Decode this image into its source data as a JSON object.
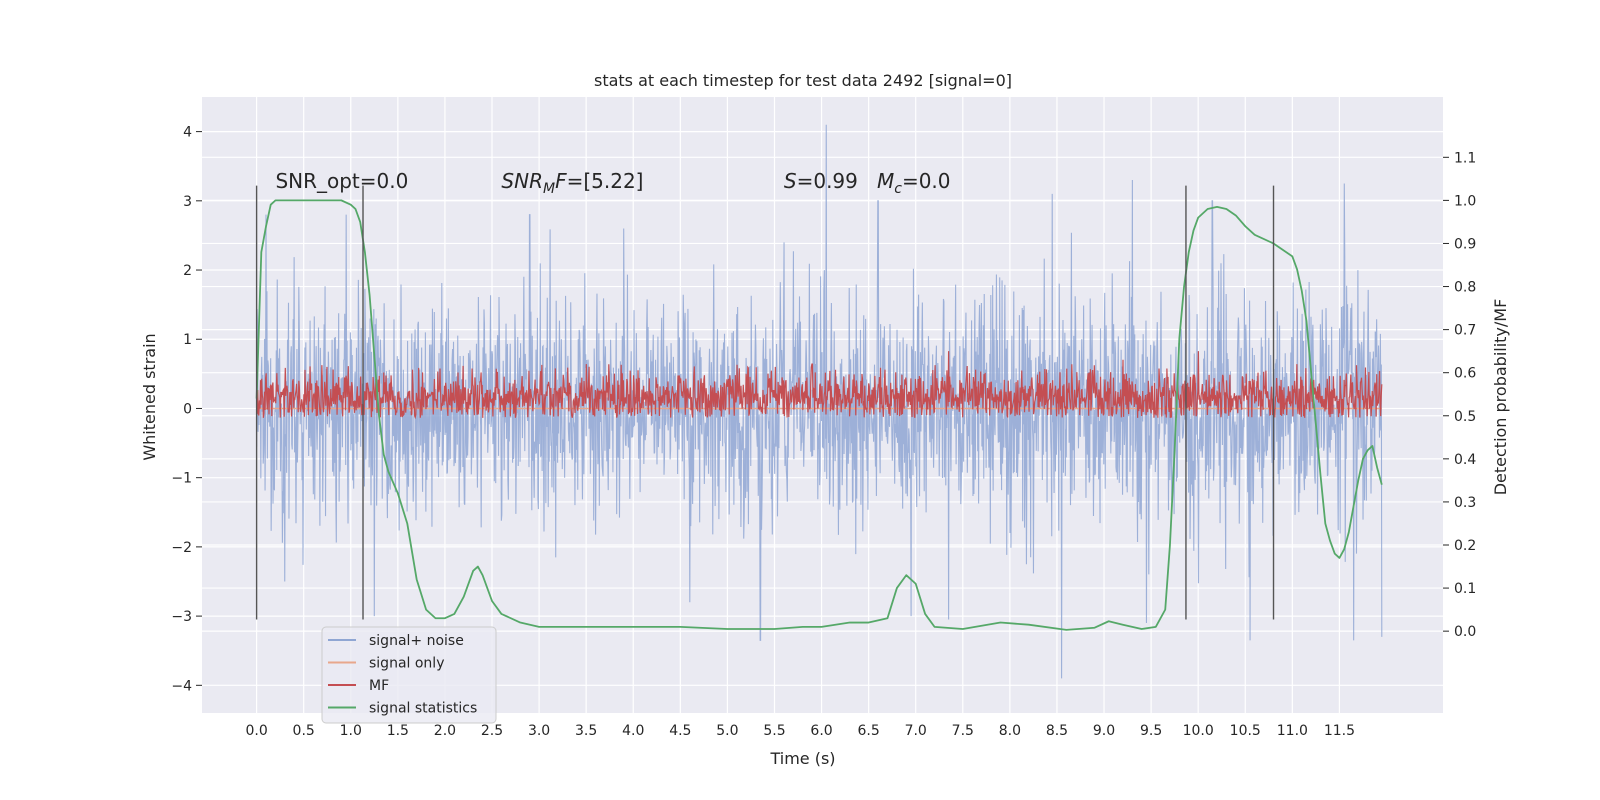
{
  "chart_data": {
    "type": "line",
    "title": "stats at each timestep for test data 2492 [signal=0]",
    "xlabel": "Time (s)",
    "ylabel": "Whitened strain",
    "y2label": "Detection probability/MF",
    "xlim": [
      -0.58,
      12.6
    ],
    "ylim": [
      -4.4,
      4.5
    ],
    "y2lim": [
      -0.19,
      1.24
    ],
    "xticks": [
      0.0,
      0.5,
      1.0,
      1.5,
      2.0,
      2.5,
      3.0,
      3.5,
      4.0,
      4.5,
      5.0,
      5.5,
      6.0,
      6.5,
      7.0,
      7.5,
      8.0,
      8.5,
      9.0,
      9.5,
      10.0,
      10.5,
      11.0,
      11.5
    ],
    "xtick_labels": [
      "0.0",
      "0.5",
      "1.0",
      "1.5",
      "2.0",
      "2.5",
      "3.0",
      "3.5",
      "4.0",
      "4.5",
      "5.0",
      "5.5",
      "6.0",
      "6.5",
      "7.0",
      "7.5",
      "8.0",
      "8.5",
      "9.0",
      "9.5",
      "10.0",
      "10.5",
      "11.0",
      "11.5"
    ],
    "yticks": [
      -4,
      -3,
      -2,
      -1,
      0,
      1,
      2,
      3,
      4
    ],
    "ytick_labels": [
      "−4",
      "−3",
      "−2",
      "−1",
      "0",
      "1",
      "2",
      "3",
      "4"
    ],
    "y2ticks": [
      0.0,
      0.1,
      0.2,
      0.3,
      0.4,
      0.5,
      0.6,
      0.7,
      0.8,
      0.9,
      1.0,
      1.1
    ],
    "y2tick_labels": [
      "0.0",
      "0.1",
      "0.2",
      "0.3",
      "0.4",
      "0.5",
      "0.6",
      "0.7",
      "0.8",
      "0.9",
      "1.0",
      "1.1"
    ],
    "grid": true,
    "legend_position": "lower-left",
    "annotations": [
      {
        "x": 0.2,
        "y": 3.3,
        "text": "SNR_opt=0.0",
        "italic_prefix": ""
      },
      {
        "x": 2.6,
        "y": 3.3,
        "text": "SNR",
        "sub": "M",
        "text2": "F=[5.22]",
        "italic_prefix": "SNR"
      },
      {
        "x": 5.6,
        "y": 3.3,
        "text": "S=0.99   M",
        "sub": "c",
        "text2": "=0.0"
      }
    ],
    "vlines": {
      "x": [
        0.0,
        1.13,
        9.87,
        10.8
      ],
      "ymin": -3.05,
      "ymax": 3.22,
      "color": "#555555"
    },
    "series": [
      {
        "name": "signal+ noise",
        "color": "#8fa6d3",
        "axis": "left",
        "kind": "noise",
        "x_range": [
          0.0,
          11.95
        ],
        "envelope_typical": 1.3,
        "peaks": [
          [
            0.1,
            2.8
          ],
          [
            0.95,
            2.8
          ],
          [
            2.9,
            2.8
          ],
          [
            3.9,
            2.6
          ],
          [
            5.6,
            2.4
          ],
          [
            6.05,
            4.1
          ],
          [
            6.6,
            3.0
          ],
          [
            8.45,
            3.1
          ],
          [
            9.3,
            3.3
          ],
          [
            10.15,
            3.0
          ],
          [
            11.55,
            3.25
          ],
          [
            11.95,
            2.1
          ]
        ],
        "troughs": [
          [
            0.3,
            -2.5
          ],
          [
            1.25,
            -3.0
          ],
          [
            4.6,
            -2.8
          ],
          [
            5.35,
            -3.35
          ],
          [
            6.95,
            -3.0
          ],
          [
            7.35,
            -3.05
          ],
          [
            8.55,
            -3.9
          ],
          [
            9.45,
            -3.1
          ],
          [
            10.55,
            -3.35
          ],
          [
            11.65,
            -3.35
          ],
          [
            11.95,
            -3.3
          ]
        ]
      },
      {
        "name": "signal only",
        "color": "#e8a78b",
        "axis": "left",
        "x": [
          0.0,
          11.95
        ],
        "y": [
          0.0,
          0.0
        ]
      },
      {
        "name": "MF",
        "color": "#c44e52",
        "axis": "right",
        "kind": "noise",
        "x_range": [
          0.0,
          11.95
        ],
        "band": [
          0.49,
          0.6
        ],
        "peaks": [
          [
            3.5,
            0.62
          ],
          [
            5.9,
            0.62
          ],
          [
            7.35,
            0.65
          ],
          [
            9.2,
            0.63
          ],
          [
            10.0,
            0.65
          ],
          [
            11.05,
            0.62
          ]
        ]
      },
      {
        "name": "signal statistics",
        "color": "#55a868",
        "axis": "right",
        "x": [
          0.0,
          0.05,
          0.1,
          0.15,
          0.2,
          0.3,
          0.5,
          0.7,
          0.9,
          1.0,
          1.05,
          1.1,
          1.15,
          1.2,
          1.25,
          1.3,
          1.35,
          1.4,
          1.5,
          1.6,
          1.7,
          1.8,
          1.9,
          2.0,
          2.1,
          2.2,
          2.3,
          2.35,
          2.4,
          2.5,
          2.6,
          2.8,
          3.0,
          3.5,
          4.0,
          4.5,
          5.0,
          5.5,
          5.8,
          6.0,
          6.3,
          6.5,
          6.7,
          6.8,
          6.9,
          7.0,
          7.1,
          7.2,
          7.5,
          7.9,
          8.2,
          8.6,
          8.9,
          9.05,
          9.2,
          9.4,
          9.55,
          9.65,
          9.7,
          9.75,
          9.8,
          9.85,
          9.9,
          9.95,
          10.0,
          10.1,
          10.2,
          10.3,
          10.4,
          10.5,
          10.6,
          10.8,
          11.0,
          11.05,
          11.1,
          11.15,
          11.2,
          11.25,
          11.3,
          11.35,
          11.4,
          11.45,
          11.5,
          11.55,
          11.6,
          11.65,
          11.7,
          11.75,
          11.8,
          11.85,
          11.9,
          11.95
        ],
        "y": [
          0.54,
          0.88,
          0.94,
          0.99,
          1.0,
          1.0,
          1.0,
          1.0,
          1.0,
          0.99,
          0.98,
          0.95,
          0.88,
          0.78,
          0.64,
          0.5,
          0.41,
          0.37,
          0.32,
          0.25,
          0.12,
          0.05,
          0.03,
          0.03,
          0.04,
          0.08,
          0.14,
          0.15,
          0.13,
          0.07,
          0.04,
          0.02,
          0.01,
          0.01,
          0.01,
          0.01,
          0.005,
          0.005,
          0.01,
          0.01,
          0.02,
          0.02,
          0.03,
          0.1,
          0.13,
          0.11,
          0.04,
          0.01,
          0.005,
          0.02,
          0.015,
          0.003,
          0.008,
          0.023,
          0.015,
          0.005,
          0.01,
          0.05,
          0.2,
          0.42,
          0.68,
          0.8,
          0.88,
          0.93,
          0.96,
          0.98,
          0.985,
          0.98,
          0.965,
          0.94,
          0.92,
          0.9,
          0.87,
          0.84,
          0.79,
          0.72,
          0.6,
          0.48,
          0.36,
          0.25,
          0.21,
          0.18,
          0.17,
          0.19,
          0.23,
          0.29,
          0.35,
          0.4,
          0.42,
          0.43,
          0.38,
          0.34
        ]
      }
    ]
  }
}
